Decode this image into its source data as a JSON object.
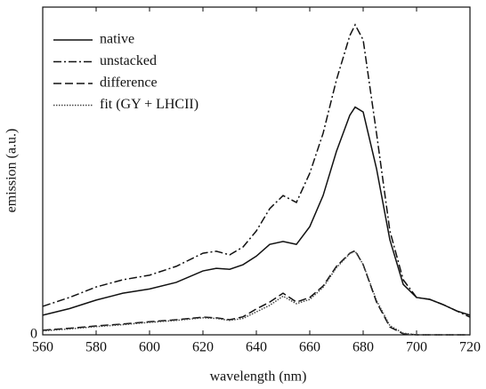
{
  "chart_data": {
    "type": "line",
    "x_label": "wavelength (nm)",
    "y_label": "emission (a.u.)",
    "x": [
      560,
      570,
      580,
      590,
      600,
      610,
      620,
      625,
      630,
      635,
      640,
      645,
      650,
      655,
      660,
      665,
      670,
      675,
      677,
      680,
      685,
      690,
      695,
      700,
      705,
      710,
      715,
      720
    ],
    "series": [
      {
        "name": "native",
        "color": "#111111",
        "style": "solid",
        "values": [
          6,
          8,
          10.6,
          12.7,
          14,
          16,
          19.5,
          20.3,
          20,
          21.4,
          24,
          27.6,
          28.5,
          27.6,
          33,
          42.5,
          56,
          67,
          69.5,
          68,
          50.7,
          29,
          15.4,
          11.4,
          10.8,
          9.2,
          7.3,
          6
        ]
      },
      {
        "name": "unstacked",
        "color": "#111111",
        "style": "dashdot",
        "values": [
          8.7,
          11.4,
          14.6,
          16.8,
          18.2,
          20.9,
          24.9,
          25.5,
          24.4,
          26.8,
          31.7,
          38.5,
          42.5,
          40.4,
          49.3,
          61.5,
          77.8,
          91.3,
          94.6,
          90,
          61.5,
          31.7,
          16.8,
          11.4,
          10.8,
          9.2,
          7.3,
          5.4
        ]
      },
      {
        "name": "difference",
        "color": "#111111",
        "style": "dashed",
        "values": [
          1.4,
          2,
          2.7,
          3.3,
          4,
          4.6,
          5.4,
          5.2,
          4.6,
          5.5,
          7.9,
          10,
          12.7,
          10,
          11.4,
          14.9,
          20.9,
          24.9,
          25.7,
          21.4,
          10,
          2.4,
          0.3,
          0,
          0,
          0,
          0,
          0
        ]
      },
      {
        "name": "fit (GY + LHCII)",
        "color": "#444444",
        "style": "dotted",
        "values": [
          1.2,
          1.8,
          2.5,
          3.1,
          3.8,
          4.4,
          5.2,
          5,
          4.4,
          5,
          7,
          9,
          11.8,
          9.5,
          10.8,
          14.5,
          20.5,
          24.8,
          25.5,
          21.5,
          10.5,
          2.8,
          0.5,
          0,
          0,
          0,
          0,
          0
        ]
      }
    ],
    "xlim": [
      560,
      720
    ],
    "xticks": [
      560,
      580,
      600,
      620,
      640,
      660,
      680,
      700,
      720
    ],
    "ylim": [
      0,
      100
    ],
    "yticks": [
      0
    ],
    "legend": "upper-left"
  }
}
